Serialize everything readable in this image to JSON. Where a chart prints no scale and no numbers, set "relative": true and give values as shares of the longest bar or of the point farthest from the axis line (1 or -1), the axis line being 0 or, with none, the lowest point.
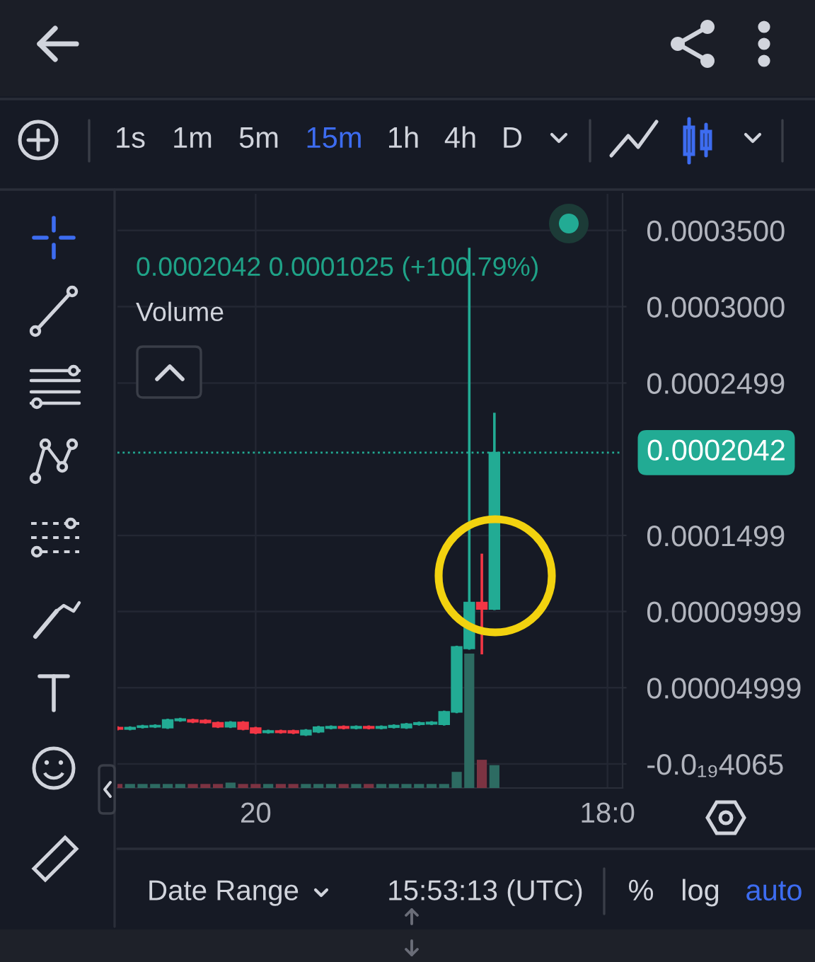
{
  "chart_data": [
    {
      "type": "candlestick",
      "categories": [
        null,
        null,
        null,
        null,
        null,
        null,
        null,
        null,
        null,
        null,
        null,
        "20",
        null,
        null,
        null,
        null,
        null,
        null,
        null,
        null,
        null,
        null,
        null,
        null,
        null,
        null,
        null,
        null,
        null,
        null,
        null,
        null,
        null,
        null,
        null,
        null,
        null,
        null,
        null,
        "18:0",
        null
      ],
      "ohlc": [
        [
          2.38e-05,
          2.38e-05,
          2.29e-05,
          2.29e-05
        ],
        [
          2.29e-05,
          2.38e-05,
          2.29e-05,
          2.38e-05
        ],
        [
          2.41e-05,
          2.48e-05,
          2.41e-05,
          2.48e-05
        ],
        [
          2.44e-05,
          2.51e-05,
          2.44e-05,
          2.51e-05
        ],
        [
          2.38e-05,
          2.88e-05,
          2.38e-05,
          2.88e-05
        ],
        [
          2.85e-05,
          2.94e-05,
          2.85e-05,
          2.94e-05
        ],
        [
          2.88e-05,
          2.88e-05,
          2.76e-05,
          2.76e-05
        ],
        [
          2.85e-05,
          2.85e-05,
          2.72e-05,
          2.72e-05
        ],
        [
          2.69e-05,
          2.69e-05,
          2.44e-05,
          2.44e-05
        ],
        [
          2.44e-05,
          2.72e-05,
          2.44e-05,
          2.72e-05
        ],
        [
          2.72e-05,
          2.72e-05,
          2.29e-05,
          2.29e-05
        ],
        [
          2.35e-05,
          2.35e-05,
          2.04e-05,
          2.04e-05
        ],
        [
          2.07e-05,
          2.16e-05,
          2.07e-05,
          2.16e-05
        ],
        [
          2.16e-05,
          2.16e-05,
          2.07e-05,
          2.07e-05
        ],
        [
          2.16e-05,
          2.16e-05,
          2.04e-05,
          2.04e-05
        ],
        [
          1.92e-05,
          2.2e-05,
          1.92e-05,
          2.2e-05
        ],
        [
          2.11e-05,
          2.41e-05,
          2.11e-05,
          2.41e-05
        ],
        [
          2.35e-05,
          2.44e-05,
          2.35e-05,
          2.44e-05
        ],
        [
          2.44e-05,
          2.44e-05,
          2.35e-05,
          2.35e-05
        ],
        [
          2.35e-05,
          2.44e-05,
          2.35e-05,
          2.44e-05
        ],
        [
          2.44e-05,
          2.44e-05,
          2.35e-05,
          2.35e-05
        ],
        [
          2.35e-05,
          2.44e-05,
          2.35e-05,
          2.44e-05
        ],
        [
          2.41e-05,
          2.51e-05,
          2.41e-05,
          2.51e-05
        ],
        [
          2.38e-05,
          2.6e-05,
          2.38e-05,
          2.6e-05
        ],
        [
          2.6e-05,
          2.69e-05,
          2.6e-05,
          2.69e-05
        ],
        [
          2.63e-05,
          2.72e-05,
          2.63e-05,
          2.72e-05
        ],
        [
          2.6e-05,
          3.41e-05,
          2.6e-05,
          3.41e-05
        ],
        [
          3.41e-05,
          7.67e-05,
          3.41e-05,
          7.67e-05
        ],
        [
          7.58e-05,
          0.0003378,
          7.58e-05,
          0.0001058
        ],
        [
          0.0001058,
          0.0001371,
          7.27e-05,
          0.0001017
        ],
        [
          0.0001017,
          0.0002295,
          0.0001017,
          0.0002042
        ],
        null,
        null,
        null,
        null,
        null,
        null,
        null,
        null,
        null,
        null
      ],
      "colors": [
        "#f23645",
        "#22ab94",
        "#22ab94",
        "#22ab94",
        "#22ab94",
        "#22ab94",
        "#f23645",
        "#f23645",
        "#f23645",
        "#22ab94",
        "#f23645",
        "#f23645",
        "#22ab94",
        "#f23645",
        "#f23645",
        "#22ab94",
        "#22ab94",
        "#22ab94",
        "#f23645",
        "#22ab94",
        "#f23645",
        "#22ab94",
        "#22ab94",
        "#22ab94",
        "#22ab94",
        "#22ab94",
        "#22ab94",
        "#22ab94",
        "#22ab94",
        "#f23645",
        "#22ab94",
        null,
        null,
        null,
        null,
        null,
        null,
        null,
        null,
        null,
        null
      ],
      "ylim": [
        -1.58e-05,
        0.000374
      ],
      "yticks": [
        {
          "value": -4.065e-20,
          "label": "-0.0₁₉4065"
        },
        {
          "value": 4.999e-05,
          "label": "0.00004999"
        },
        {
          "value": 9.999e-05,
          "label": "0.00009999"
        },
        {
          "value": 0.0001499,
          "label": "0.0001499"
        },
        {
          "value": 0.0002499,
          "label": "0.0002499"
        },
        {
          "value": 0.0003,
          "label": "0.0003000"
        },
        {
          "value": 0.00035,
          "label": "0.0003500"
        }
      ],
      "grid": true,
      "ref_lines": [
        {
          "axis": "y",
          "value": 0.0002042,
          "label": "0.0002042",
          "color": "#22ab94",
          "line_style": "dotted"
        }
      ],
      "annotations": [
        "0.0002042 0.0001025 (+100.79%)",
        "1s",
        "1m",
        "5m",
        "15m",
        "1h",
        "4h",
        "D",
        "Date Range",
        "15:53:13 (UTC)",
        "%",
        "log",
        "auto"
      ]
    },
    {
      "type": "bar",
      "title": "Volume",
      "relative": true,
      "categories": [
        null,
        null,
        null,
        null,
        null,
        null,
        null,
        null,
        null,
        null,
        null,
        null,
        null,
        null,
        null,
        null,
        null,
        null,
        null,
        null,
        null,
        null,
        null,
        null,
        null,
        null,
        null,
        null,
        null,
        null,
        null,
        null,
        null,
        null,
        null,
        null,
        null,
        null,
        null,
        null,
        null
      ],
      "values": [
        0.03,
        0.03,
        0.03,
        0.03,
        0.03,
        0.03,
        0.03,
        0.03,
        0.03,
        0.04,
        0.03,
        0.03,
        0.03,
        0.03,
        0.03,
        0.03,
        0.03,
        0.03,
        0.03,
        0.03,
        0.03,
        0.03,
        0.03,
        0.03,
        0.03,
        0.03,
        0.03,
        0.12,
        1,
        0.21,
        0.17,
        null,
        null,
        null,
        null,
        null,
        null,
        null,
        null,
        null,
        null
      ],
      "colors": [
        "#7c3342",
        "#2d6b62",
        "#2d6b62",
        "#2d6b62",
        "#2d6b62",
        "#2d6b62",
        "#7c3342",
        "#7c3342",
        "#7c3342",
        "#2d6b62",
        "#7c3342",
        "#7c3342",
        "#2d6b62",
        "#7c3342",
        "#7c3342",
        "#2d6b62",
        "#2d6b62",
        "#2d6b62",
        "#7c3342",
        "#2d6b62",
        "#7c3342",
        "#2d6b62",
        "#2d6b62",
        "#2d6b62",
        "#2d6b62",
        "#2d6b62",
        "#2d6b62",
        "#2d6b62",
        "#2d6b62",
        "#7c3342",
        "#2d6b62",
        null,
        null,
        null,
        null,
        null,
        null,
        null,
        null,
        null,
        null
      ]
    }
  ]
}
